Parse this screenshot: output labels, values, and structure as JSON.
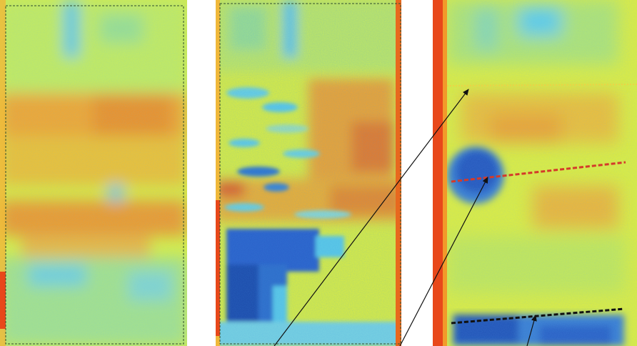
{
  "figure": {
    "panels": [
      {
        "id": "panel-a",
        "description_icon": "thermal-map"
      },
      {
        "id": "panel-b",
        "description_icon": "thermal-map"
      },
      {
        "id": "panel-c",
        "description_icon": "thermal-map"
      }
    ],
    "colors": {
      "base_yellow": "#e6ef3a",
      "warm_orange": "#f59a24",
      "hot_red": "#e8481a",
      "cool_cyan": "#5fd0e8",
      "cold_blue": "#2a5fc8",
      "deep_blue": "#1a3a9a",
      "frame_dashed": "#2f4f2f",
      "arrow": "#111111",
      "line_red": "#d43a2a",
      "line_black": "#111111"
    }
  }
}
